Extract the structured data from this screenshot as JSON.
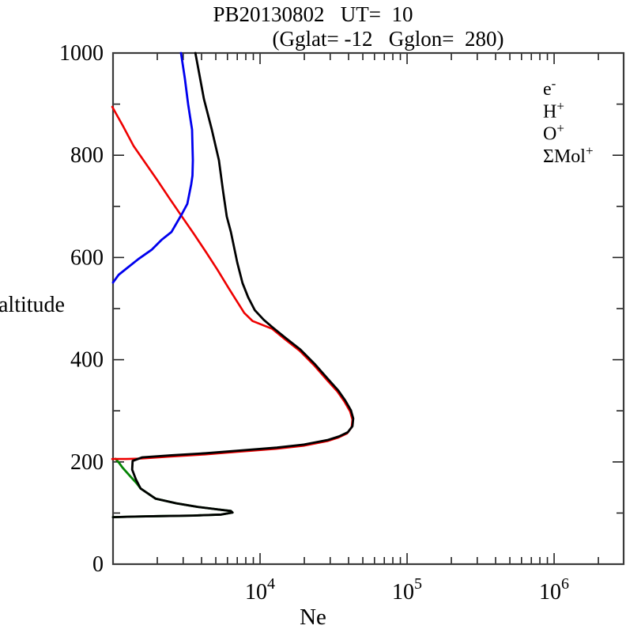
{
  "header": {
    "title": "PB20130802   UT=  10",
    "subtitle": "(Gglat= -12   Gglon=  280)"
  },
  "legend": {
    "position": "upper-right",
    "items": [
      {
        "label": "e",
        "sup": "-",
        "color": "#000000"
      },
      {
        "label": "H",
        "sup": "+",
        "color": "#0000ee"
      },
      {
        "label": "O",
        "sup": "+",
        "color": "#ee0000"
      },
      {
        "label": "ΣMol",
        "sup": "+",
        "color": "#048404"
      }
    ]
  },
  "chart_data": {
    "type": "line",
    "title": "PB20130802   UT=  10",
    "subtitle": "(Gglat= -12   Gglon=  280)",
    "xlabel": "Ne",
    "ylabel": "altitude",
    "x_scale": "log",
    "xlim": [
      1000,
      2970000
    ],
    "ylim": [
      0,
      1000
    ],
    "grid": false,
    "x_axis": {
      "major_ticks": [
        {
          "base": 10,
          "exp": 4
        },
        {
          "base": 10,
          "exp": 5
        },
        {
          "base": 10,
          "exp": 6
        }
      ],
      "minor_multiples": [
        2,
        3,
        4,
        5,
        6,
        7,
        8,
        9
      ],
      "decades": [
        1000,
        10000,
        100000,
        1000000
      ]
    },
    "y_axis": {
      "major_ticks": [
        0,
        200,
        400,
        600,
        800,
        1000
      ],
      "minor_ticks": [
        100,
        300,
        500,
        700,
        900
      ]
    },
    "series": [
      {
        "name": "SigmaMol+",
        "legend_label": "ΣMol+",
        "color": "#048404",
        "width": 2.8,
        "points": [
          [
            1040,
            206
          ],
          [
            1100,
            198
          ],
          [
            1160,
            189
          ],
          [
            1310,
            172
          ],
          [
            1450,
            158
          ],
          [
            1540,
            148
          ],
          [
            1950,
            128
          ],
          [
            2700,
            119
          ],
          [
            3760,
            112
          ],
          [
            5200,
            107
          ],
          [
            6330,
            104
          ],
          [
            6500,
            101
          ],
          [
            5450,
            97
          ],
          [
            3500,
            95
          ],
          [
            2020,
            94
          ],
          [
            1400,
            93
          ],
          [
            1000,
            92
          ]
        ]
      },
      {
        "name": "O+",
        "legend_label": "O+",
        "color": "#ee0000",
        "width": 2.6,
        "points": [
          [
            1000,
            897
          ],
          [
            1180,
            860
          ],
          [
            1400,
            820
          ],
          [
            1700,
            785
          ],
          [
            2020,
            754
          ],
          [
            2450,
            718
          ],
          [
            2970,
            683
          ],
          [
            3600,
            648
          ],
          [
            4360,
            612
          ],
          [
            5200,
            578
          ],
          [
            6170,
            543
          ],
          [
            7000,
            518
          ],
          [
            7900,
            494
          ],
          [
            9000,
            478
          ],
          [
            10600,
            470
          ],
          [
            12200,
            463
          ],
          [
            15000,
            442
          ],
          [
            18800,
            420
          ],
          [
            23500,
            392
          ],
          [
            29000,
            362
          ],
          [
            34000,
            340
          ],
          [
            38000,
            320
          ],
          [
            41500,
            301
          ],
          [
            43000,
            285
          ],
          [
            42500,
            270
          ],
          [
            39500,
            258
          ],
          [
            34500,
            250
          ],
          [
            29000,
            243
          ],
          [
            20000,
            234
          ],
          [
            13000,
            228
          ],
          [
            7000,
            222
          ],
          [
            4260,
            217
          ],
          [
            2500,
            213
          ],
          [
            1580,
            209
          ],
          [
            1250,
            208
          ],
          [
            1000,
            208
          ]
        ]
      },
      {
        "name": "H+",
        "legend_label": "H+",
        "color": "#0000ee",
        "width": 2.8,
        "points": [
          [
            2900,
            1000
          ],
          [
            3080,
            950
          ],
          [
            3240,
            900
          ],
          [
            3450,
            850
          ],
          [
            3490,
            790
          ],
          [
            3470,
            760
          ],
          [
            3400,
            743
          ],
          [
            3200,
            705
          ],
          [
            2940,
            685
          ],
          [
            2500,
            650
          ],
          [
            2150,
            635
          ],
          [
            1830,
            615
          ],
          [
            1490,
            597
          ],
          [
            1230,
            578
          ],
          [
            1090,
            566
          ],
          [
            1000,
            551
          ]
        ]
      },
      {
        "name": "e-",
        "legend_label": "e-",
        "color": "#000000",
        "width": 2.8,
        "points": [
          [
            3630,
            1000
          ],
          [
            4150,
            910
          ],
          [
            4700,
            850
          ],
          [
            5250,
            790
          ],
          [
            5600,
            730
          ],
          [
            5940,
            680
          ],
          [
            6330,
            650
          ],
          [
            7000,
            590
          ],
          [
            7600,
            550
          ],
          [
            8300,
            522
          ],
          [
            9200,
            497
          ],
          [
            10600,
            478
          ],
          [
            12200,
            463
          ],
          [
            15000,
            442
          ],
          [
            18800,
            420
          ],
          [
            23500,
            392
          ],
          [
            29000,
            362
          ],
          [
            34000,
            340
          ],
          [
            38000,
            320
          ],
          [
            41500,
            301
          ],
          [
            43000,
            285
          ],
          [
            42500,
            270
          ],
          [
            39500,
            258
          ],
          [
            34500,
            250
          ],
          [
            29000,
            243
          ],
          [
            20000,
            234
          ],
          [
            13000,
            228
          ],
          [
            7000,
            222
          ],
          [
            4260,
            217
          ],
          [
            2500,
            213
          ],
          [
            1580,
            209
          ],
          [
            1360,
            202
          ],
          [
            1350,
            185
          ],
          [
            1430,
            166
          ],
          [
            1540,
            148
          ],
          [
            1950,
            128
          ],
          [
            2700,
            119
          ],
          [
            3760,
            112
          ],
          [
            5200,
            107
          ],
          [
            6330,
            104
          ],
          [
            6500,
            101
          ],
          [
            5450,
            97
          ],
          [
            3500,
            95
          ],
          [
            2020,
            94
          ],
          [
            1400,
            93
          ],
          [
            1000,
            92
          ]
        ]
      }
    ]
  }
}
